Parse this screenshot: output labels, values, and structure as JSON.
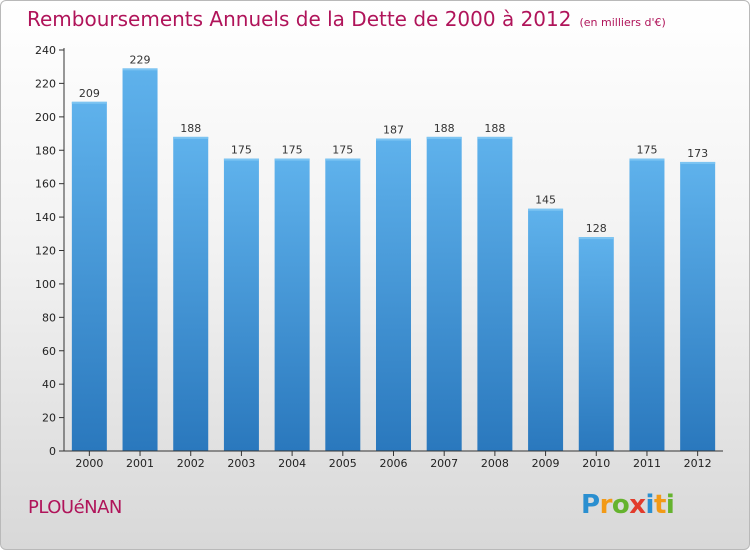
{
  "title": "Remboursements Annuels de la Dette de 2000 à 2012",
  "unit": "(en milliers d'€)",
  "commune": "PLOUéNAN",
  "logo": {
    "letters": [
      "P",
      "r",
      "o",
      "x",
      "i",
      "t",
      "i"
    ],
    "colors": [
      "#2a8fd0",
      "#f29a16",
      "#65b32e",
      "#e23b2b",
      "#2a8fd0",
      "#f29a16",
      "#65b32e"
    ]
  },
  "colors": {
    "bar": "#3d93d9",
    "bar_light": "#5aade8",
    "bar_dark": "#2a78bd",
    "title": "#b0145a"
  },
  "chart_data": {
    "type": "bar",
    "categories": [
      "2000",
      "2001",
      "2002",
      "2003",
      "2004",
      "2005",
      "2006",
      "2007",
      "2008",
      "2009",
      "2010",
      "2011",
      "2012"
    ],
    "values": [
      209,
      229,
      188,
      175,
      175,
      175,
      187,
      188,
      188,
      145,
      128,
      175,
      173
    ],
    "ylim": [
      0,
      240
    ],
    "yticks": [
      0,
      20,
      40,
      60,
      80,
      100,
      120,
      140,
      160,
      180,
      200,
      220,
      240
    ],
    "title": "Remboursements Annuels de la Dette de 2000 à 2012",
    "xlabel": "",
    "ylabel": "",
    "grid": false
  }
}
